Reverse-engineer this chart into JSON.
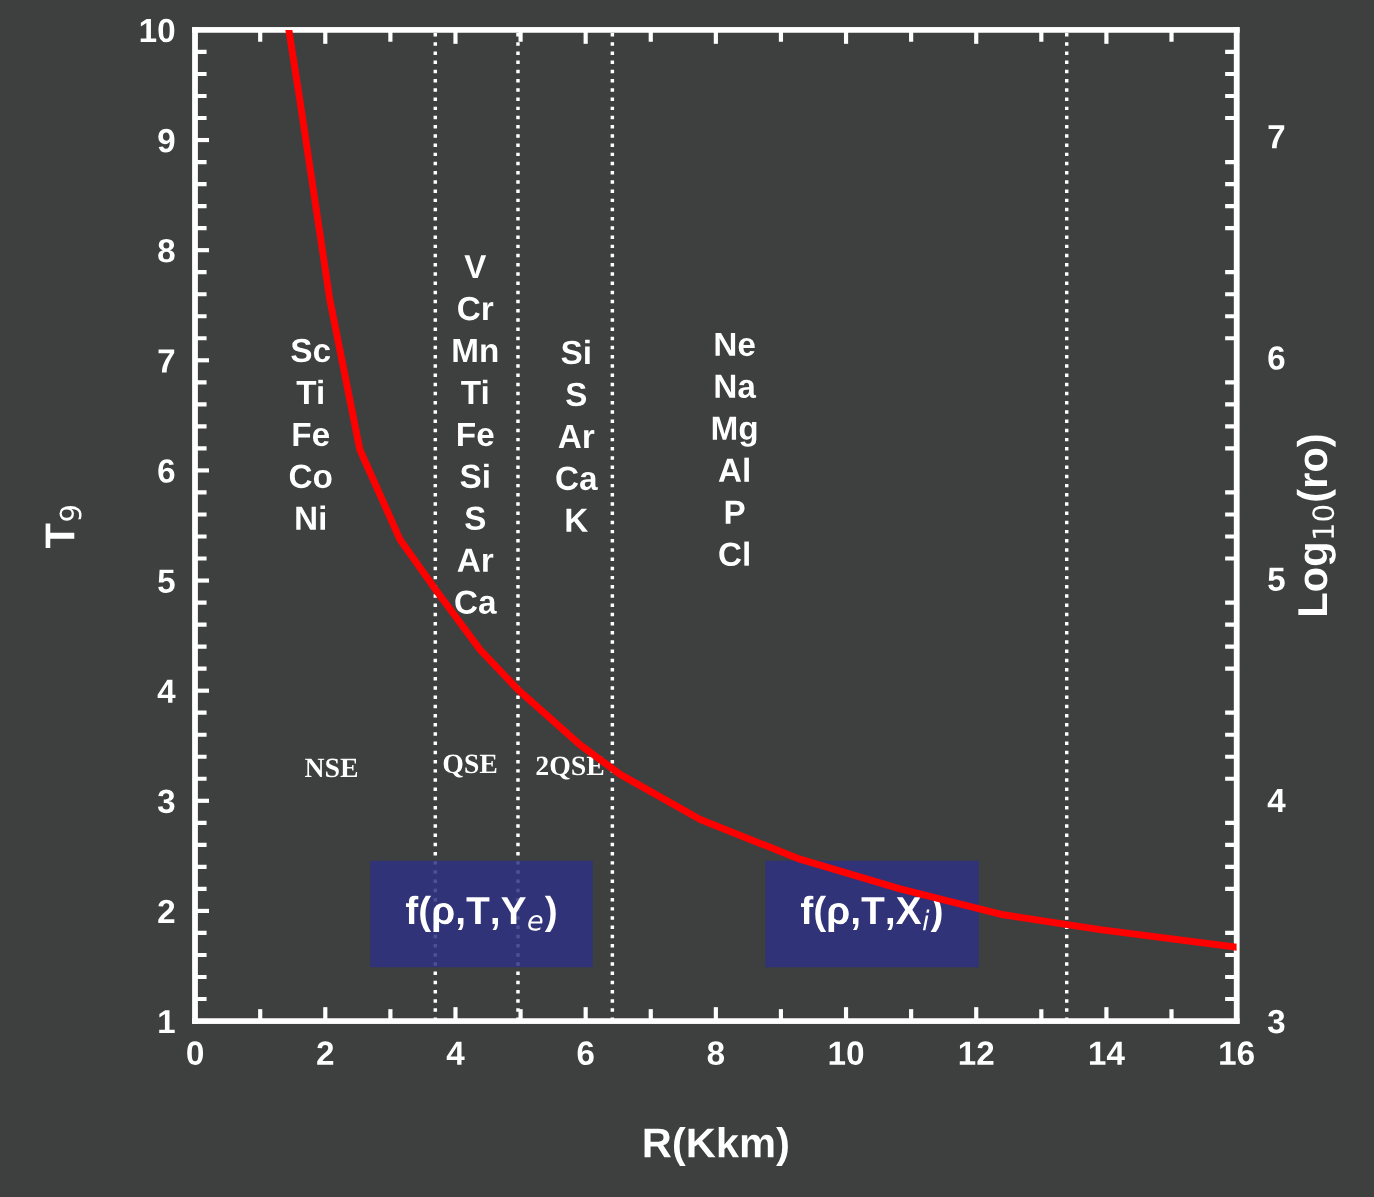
{
  "chart_data": {
    "type": "line",
    "xlabel": "R(Kkm)",
    "ylabel": "T$_{9}$",
    "y2label": "Log$_{10}$(ro)",
    "x": [
      1.44,
      1.61,
      2.07,
      2.53,
      3.15,
      3.69,
      4.38,
      4.96,
      5.91,
      6.53,
      7.76,
      9.29,
      10.83,
      12.37,
      13.9,
      16
    ],
    "series": [
      {
        "color": "#ff0000",
        "values": [
          10,
          9.36,
          7.55,
          6.19,
          5.37,
          4.92,
          4.37,
          4.01,
          3.51,
          3.24,
          2.83,
          2.47,
          2.2,
          1.97,
          1.83,
          1.67
        ]
      }
    ],
    "xlim": [
      0,
      16
    ],
    "xticks": [
      0,
      2,
      4,
      6,
      8,
      10,
      12,
      14,
      16
    ],
    "ylim": [
      1,
      10
    ],
    "yticks": [
      1,
      2,
      3,
      4,
      5,
      6,
      7,
      8,
      9,
      10
    ],
    "y2lim": [
      3,
      7.48
    ],
    "y2ticks": [
      3,
      4,
      5,
      6,
      7
    ],
    "grid": false,
    "marker": "none",
    "line_style": "solid",
    "ref_lines": [
      {
        "axis": "x",
        "value": 3.69,
        "color": "#ffffff",
        "line_style": "dotted"
      },
      {
        "axis": "x",
        "value": 4.96,
        "color": "#ffffff",
        "line_style": "dotted"
      },
      {
        "axis": "x",
        "value": 6.41,
        "color": "#ffffff",
        "line_style": "dotted"
      },
      {
        "axis": "x",
        "value": 13.39,
        "color": "#ffffff",
        "line_style": "dotted"
      }
    ],
    "annotations": [
      "Sc\nTi\nFe\nCo\nNi",
      "V\nCr\nMn\nTi\nFe\nSi\nS\nAr\nCa",
      "Si\nS\nAr\nCa\nK",
      "Ne\nNa\nMg\nAl\nP\nCl",
      "NSE",
      "QSE",
      "2QSE",
      "f(ρ,T,Y$_{e}$)",
      "f(ρ,T,X$_{i}$)"
    ]
  }
}
